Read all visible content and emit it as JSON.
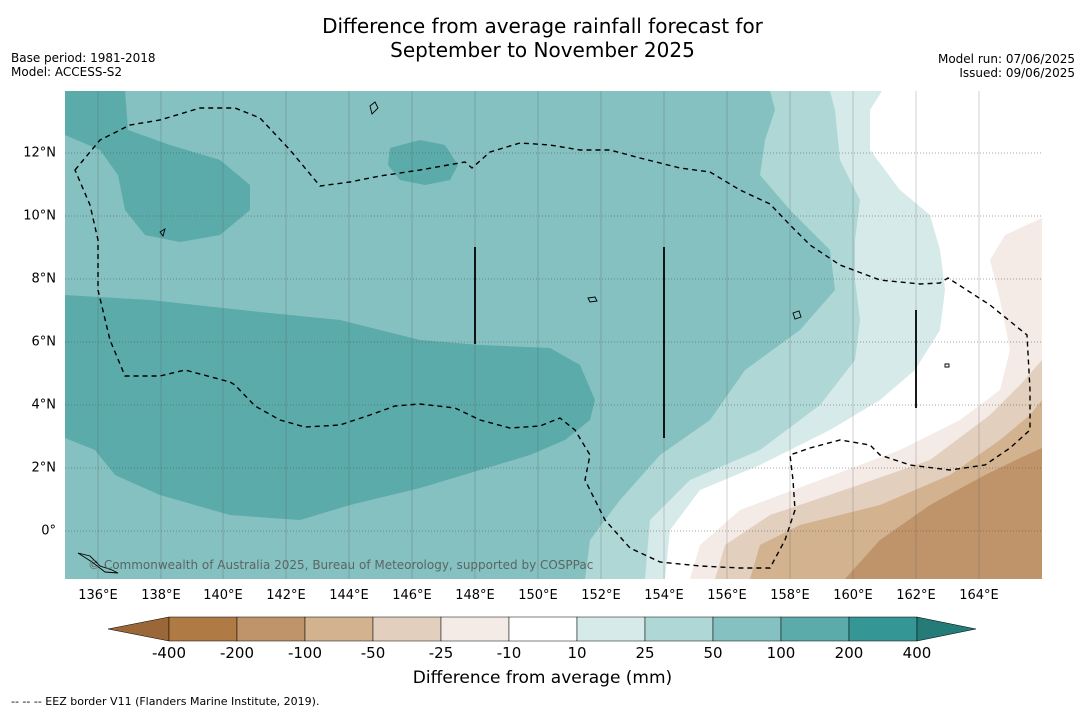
{
  "title": {
    "line1": "Difference from average rainfall forecast for",
    "line2": "September to November 2025"
  },
  "meta": {
    "base_period": "Base period: 1981-2018",
    "model": "Model: ACCESS-S2",
    "model_run": "Model run: 07/06/2025",
    "issued": "Issued: 09/06/2025"
  },
  "axes": {
    "longitude_labels": [
      "136°E",
      "138°E",
      "140°E",
      "142°E",
      "144°E",
      "146°E",
      "148°E",
      "150°E",
      "152°E",
      "154°E",
      "156°E",
      "158°E",
      "160°E",
      "162°E",
      "164°E"
    ],
    "latitude_labels": [
      "12°N",
      "10°N",
      "8°N",
      "6°N",
      "4°N",
      "2°N",
      "0°"
    ]
  },
  "copyright": "© Commonwealth of Australia 2025, Bureau of Meteorology, supported by COSPPac",
  "colorbar": {
    "ticks": [
      "-400",
      "-200",
      "-100",
      "-50",
      "-25",
      "-10",
      "10",
      "25",
      "50",
      "100",
      "200",
      "400"
    ],
    "colors": [
      "#af7a44",
      "#bf946a",
      "#d2b28f",
      "#e3cfbd",
      "#f4ebe6",
      "#ffffff",
      "#d6eaea",
      "#aed7d6",
      "#84c1c0",
      "#5aabaa",
      "#359795"
    ],
    "label": "Difference from average (mm)"
  },
  "footnote": "-- -- -- EEZ border V11 (Flanders Marine Institute, 2019)."
}
